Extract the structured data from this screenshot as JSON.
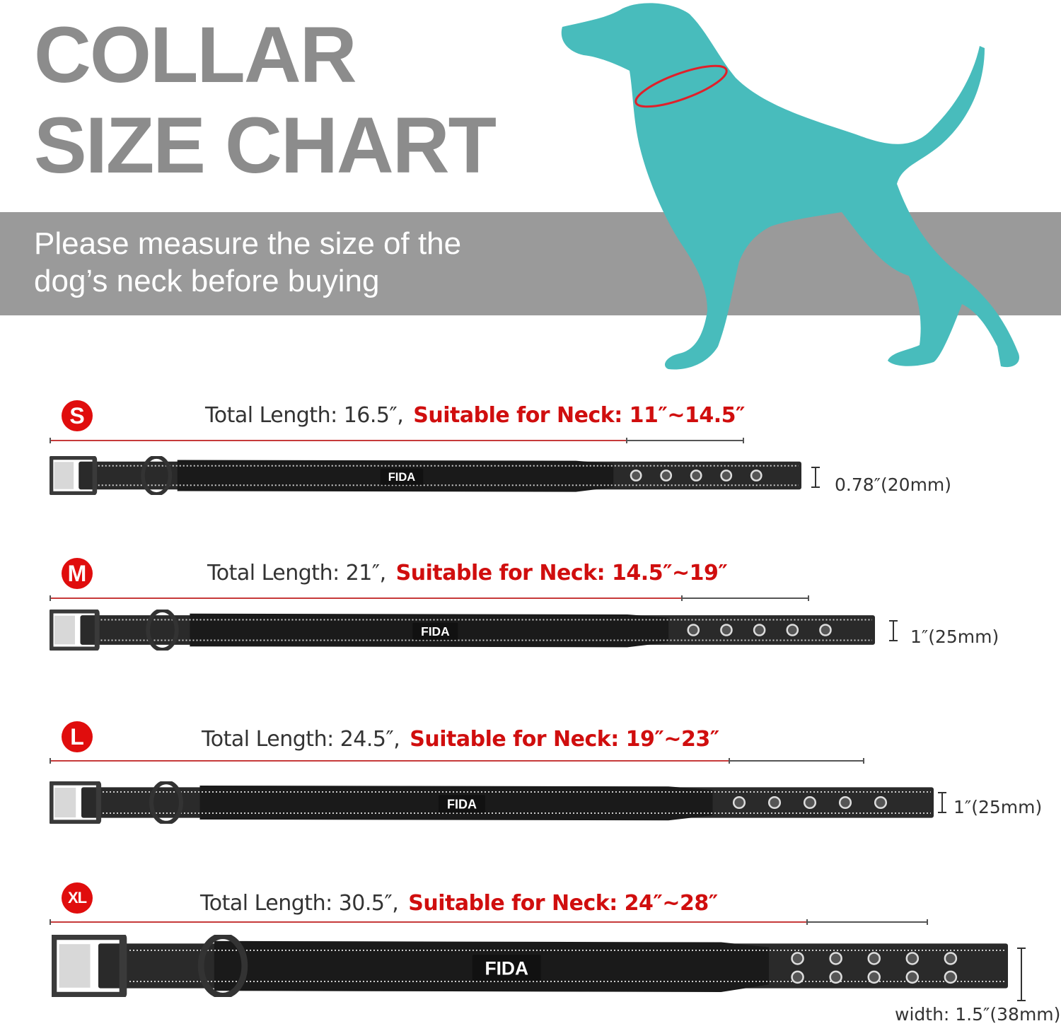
{
  "header": {
    "title_line1": "COLLAR",
    "title_line2": "SIZE CHART",
    "instruction_line1": "Please measure the size of the",
    "instruction_line2": "dog’s neck before buying"
  },
  "colors": {
    "accent_red": "#e00d0d",
    "dog_teal": "#48bcbc",
    "band_gray": "#9a9a9a",
    "title_gray": "#8c8c8c",
    "collar_black": "#222222"
  },
  "brand": "FIDA",
  "sizes": [
    {
      "badge": "S",
      "total_length": "Total Length: 16.5″,",
      "neck": "Suitable for Neck: 11″~14.5″",
      "width": "0.78″(20mm)",
      "holes_rows": 1
    },
    {
      "badge": "M",
      "total_length": "Total Length: 21″,",
      "neck": "Suitable for Neck: 14.5″~19″",
      "width": "1″(25mm)",
      "holes_rows": 1
    },
    {
      "badge": "L",
      "total_length": "Total Length: 24.5″,",
      "neck": "Suitable for Neck: 19″~23″",
      "width": "1″(25mm)",
      "holes_rows": 1
    },
    {
      "badge": "XL",
      "total_length": "Total Length: 30.5″,",
      "neck": "Suitable for Neck: 24″~28″",
      "width": "width: 1.5″(38mm)",
      "holes_rows": 2
    }
  ]
}
